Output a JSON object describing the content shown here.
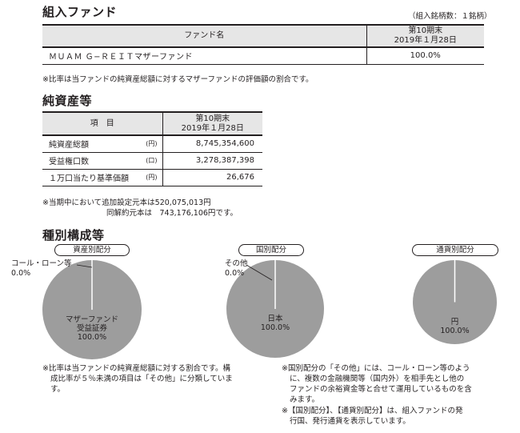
{
  "fund_section": {
    "title": "組入ファンド",
    "count_note": "（組入銘柄数：１銘柄）",
    "table": {
      "header_fund": "ファンド名",
      "header_period": "第10期末",
      "header_date": "2019年１月28日",
      "rows": [
        {
          "name": "ＭＵＡＭ Ｇ−ＲＥＩＴマザーファンド",
          "value": "100.0%"
        }
      ]
    },
    "note": "※比率は当ファンドの純資産総額に対するマザーファンドの評価額の割合です。"
  },
  "asset_section": {
    "title": "純資産等",
    "table": {
      "header_item": "項　目",
      "header_period": "第10期末",
      "header_date": "2019年１月28日",
      "rows": [
        {
          "label": "純資産総額",
          "unit": "(円)",
          "value": "8,745,354,600"
        },
        {
          "label": "受益権口数",
          "unit": "(口)",
          "value": "3,278,387,398"
        },
        {
          "label": "１万口当たり基準価額",
          "unit": "(円)",
          "value": "26,676"
        }
      ]
    },
    "note_line1": "※当期中において追加設定元本は520,075,013円",
    "note_line2": "同解約元本は　743,176,106円です。"
  },
  "composition_section": {
    "title": "種別構成等",
    "charts": [
      {
        "label": "資産別配分",
        "callout_name": "コール・ローン等",
        "callout_value": "0.0%",
        "main_name_1": "マザーファンド",
        "main_name_2": "受益証券",
        "main_value": "100.0%"
      },
      {
        "label": "国別配分",
        "callout_name": "その他",
        "callout_value": "0.0%",
        "main_name_1": "日本",
        "main_value": "100.0%"
      },
      {
        "label": "通貨別配分",
        "main_name_1": "円",
        "main_value": "100.0%"
      }
    ],
    "note_left_1": "※比率は当ファンドの純資産総額に対する割合です。構",
    "note_left_2": "成比率が５％未満の項目は「その他」に分類していま",
    "note_left_3": "す。",
    "note_right_1": "※国別配分の「その他」には、コール・ローン等のよう",
    "note_right_2": "に、複数の金融機関等（国内外）を相手先とし他の",
    "note_right_3": "ファンドの余裕資金等と合せて運用しているものを含",
    "note_right_4": "みます。",
    "note_right_5": "※【国別配分】、【通貨別配分】は、組入ファンドの発",
    "note_right_6": "行国、発行通貨を表示しています。"
  },
  "colors": {
    "pie_fill": "#9d9d9d",
    "header_fill": "#e6e6e6",
    "text": "#231f20"
  }
}
